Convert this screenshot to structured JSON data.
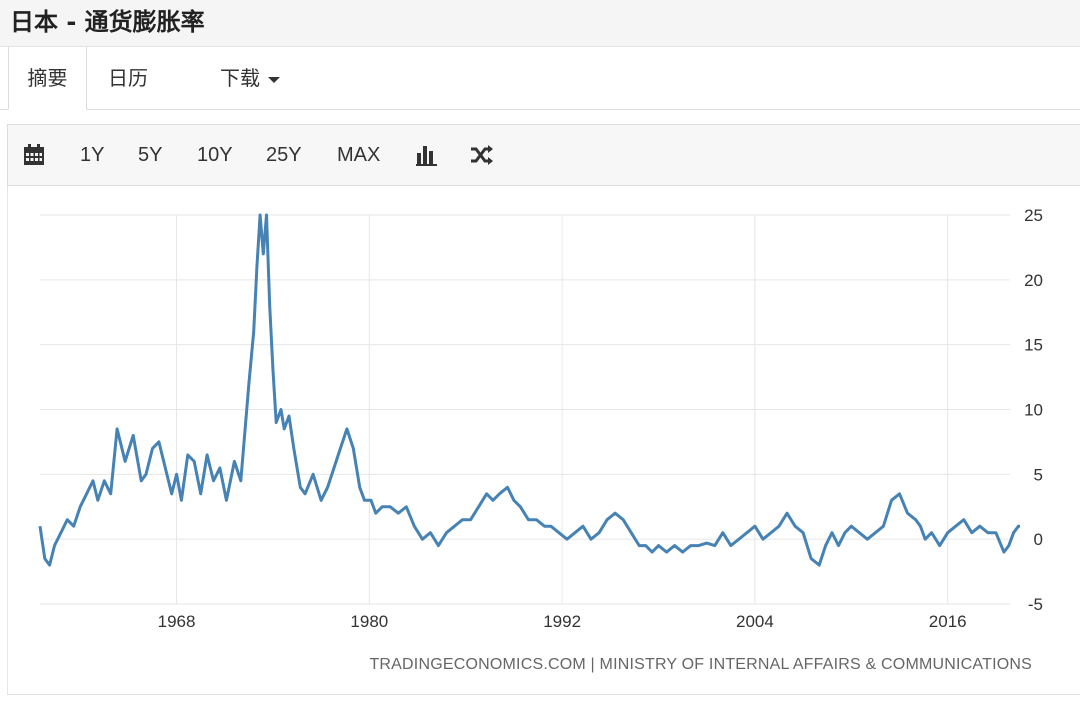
{
  "header": {
    "title": "日本 - 通货膨胀率"
  },
  "tabs": [
    {
      "label": "摘要"
    },
    {
      "label": "日历"
    },
    {
      "label": "下载"
    }
  ],
  "toolbar": {
    "calendar_icon": "calendar-icon",
    "ranges": [
      "1Y",
      "5Y",
      "10Y",
      "25Y",
      "MAX"
    ],
    "bar_icon": "bar-chart-icon",
    "shuffle_icon": "shuffle-icon"
  },
  "colors": {
    "line": "#4682b4",
    "grid": "#e6e6e6",
    "text": "#333333"
  },
  "source": "TRADINGECONOMICS.COM  |  MINISTRY OF INTERNAL AFFAIRS & COMMUNICATIONS",
  "chart_data": {
    "type": "line",
    "title": "",
    "xlabel": "",
    "ylabel": "",
    "xlim": [
      1959.5,
      2020.5
    ],
    "ylim": [
      -5,
      25
    ],
    "x_ticks": [
      1968,
      1980,
      1992,
      2004,
      2016
    ],
    "y_ticks": [
      25,
      20,
      15,
      10,
      5,
      0,
      -5
    ],
    "grid": true,
    "series": [
      {
        "name": "",
        "x": [
          1959.5,
          1959.8,
          1960.1,
          1960.4,
          1960.8,
          1961.2,
          1961.6,
          1962.0,
          1962.4,
          1962.8,
          1963.1,
          1963.5,
          1963.9,
          1964.3,
          1964.8,
          1965.3,
          1965.8,
          1966.1,
          1966.5,
          1966.9,
          1967.3,
          1967.7,
          1968.0,
          1968.3,
          1968.7,
          1969.1,
          1969.5,
          1969.9,
          1970.3,
          1970.7,
          1971.1,
          1971.6,
          1972.0,
          1972.5,
          1972.8,
          1973.0,
          1973.2,
          1973.4,
          1973.6,
          1973.8,
          1974.0,
          1974.2,
          1974.5,
          1974.7,
          1975.0,
          1975.3,
          1975.7,
          1976.0,
          1976.5,
          1977.0,
          1977.4,
          1977.8,
          1978.2,
          1978.6,
          1979.0,
          1979.4,
          1979.7,
          1980.1,
          1980.4,
          1980.8,
          1981.3,
          1981.8,
          1982.3,
          1982.8,
          1983.3,
          1983.8,
          1984.3,
          1984.8,
          1985.3,
          1985.8,
          1986.3,
          1986.8,
          1987.3,
          1987.7,
          1988.1,
          1988.6,
          1989.0,
          1989.4,
          1989.9,
          1990.4,
          1990.9,
          1991.3,
          1991.8,
          1992.3,
          1992.8,
          1993.3,
          1993.8,
          1994.3,
          1994.8,
          1995.3,
          1995.8,
          1996.3,
          1996.8,
          1997.2,
          1997.6,
          1998.0,
          1998.5,
          1999.0,
          1999.5,
          2000.0,
          2000.5,
          2001.0,
          2001.5,
          2002.0,
          2002.5,
          2003.0,
          2003.5,
          2004.0,
          2004.5,
          2005.0,
          2005.5,
          2006.0,
          2006.5,
          2007.0,
          2007.5,
          2008.0,
          2008.4,
          2008.8,
          2009.2,
          2009.6,
          2010.0,
          2010.5,
          2011.0,
          2011.5,
          2012.0,
          2012.5,
          2013.0,
          2013.5,
          2014.0,
          2014.3,
          2014.6,
          2015.0,
          2015.5,
          2016.0,
          2016.5,
          2017.0,
          2017.5,
          2018.0,
          2018.5,
          2019.0,
          2019.5,
          2019.8,
          2020.1,
          2020.4,
          2020.5
        ],
        "values": [
          1.0,
          -1.5,
          -2.0,
          -0.5,
          0.5,
          1.5,
          1.0,
          2.5,
          3.5,
          4.5,
          3.0,
          4.5,
          3.5,
          8.5,
          6.0,
          8.0,
          4.5,
          5.0,
          7.0,
          7.5,
          5.5,
          3.5,
          5.0,
          3.0,
          6.5,
          6.0,
          3.5,
          6.5,
          4.5,
          5.5,
          3.0,
          6.0,
          4.5,
          12.0,
          16.0,
          21.0,
          25.5,
          22.0,
          25.0,
          18.0,
          13.0,
          9.0,
          10.0,
          8.5,
          9.5,
          7.0,
          4.0,
          3.5,
          5.0,
          3.0,
          4.0,
          5.5,
          7.0,
          8.5,
          7.0,
          4.0,
          3.0,
          3.0,
          2.0,
          2.5,
          2.5,
          2.0,
          2.5,
          1.0,
          0.0,
          0.5,
          -0.5,
          0.5,
          1.0,
          1.5,
          1.5,
          2.5,
          3.5,
          3.0,
          3.5,
          4.0,
          3.0,
          2.5,
          1.5,
          1.5,
          1.0,
          1.0,
          0.5,
          0.0,
          0.5,
          1.0,
          0.0,
          0.5,
          1.5,
          2.0,
          1.5,
          0.5,
          -0.5,
          -0.5,
          -1.0,
          -0.5,
          -1.0,
          -0.5,
          -1.0,
          -0.5,
          -0.5,
          -0.3,
          -0.5,
          0.5,
          -0.5,
          0.0,
          0.5,
          1.0,
          0.0,
          0.5,
          1.0,
          2.0,
          1.0,
          0.5,
          -1.5,
          -2.0,
          -0.5,
          0.5,
          -0.5,
          0.5,
          1.0,
          0.5,
          0.0,
          0.5,
          1.0,
          3.0,
          3.5,
          2.0,
          1.5,
          1.0,
          0.0,
          0.5,
          -0.5,
          0.5,
          1.0,
          1.5,
          0.5,
          1.0,
          0.5,
          0.5,
          -1.0,
          -0.5,
          0.5,
          1.0,
          1.0
        ]
      }
    ]
  }
}
